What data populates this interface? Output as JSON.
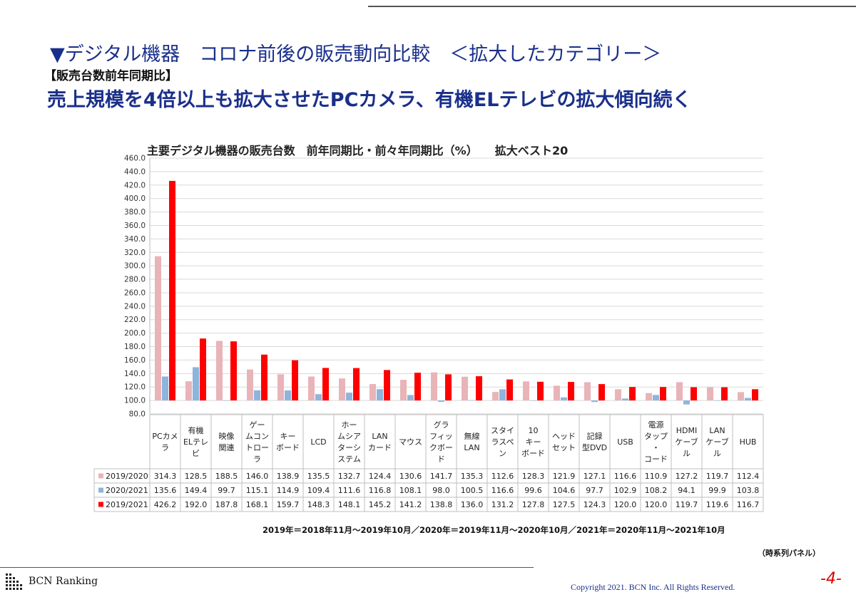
{
  "slide": {
    "title": "▼デジタル機器　コロナ前後の販売動向比較　＜拡大したカテゴリー＞",
    "subtitle": "【販売台数前年同期比】",
    "headline": "売上規模を4倍以上も拡大させたPCカメラ、有機ELテレビの拡大傾向続く",
    "period_note": "2019年＝2018年11月～2019年10月／2020年＝2019年11月～2020年10月／2021年＝2020年11月～2021年10月",
    "source_note": "（時系列パネル）",
    "brand": "BCN Ranking",
    "copyright": "Copyright 2021. BCN Inc. All Rights Reserved.",
    "page_number": "-4-"
  },
  "colors": {
    "series_2019_2020": "#e8b4b8",
    "series_2020_2021": "#8fb4dc",
    "series_2019_2021": "#ff0000",
    "title_blue": "#1a2f8a"
  },
  "chart_data": {
    "type": "bar",
    "title": "主要デジタル機器の販売台数　前年同期比・前々年同期比（%）　　拡大ベスト20",
    "categories": [
      [
        "PCカメ",
        "ラ"
      ],
      [
        "有機",
        "ELテレ",
        "ビ"
      ],
      [
        "映像",
        "関連"
      ],
      [
        "ゲー",
        "ムコン",
        "トロー",
        "ラ"
      ],
      [
        "キー",
        "ボード"
      ],
      [
        "LCD"
      ],
      [
        "ホー",
        "ムシア",
        "ターシ",
        "ステム"
      ],
      [
        "LAN",
        "カード"
      ],
      [
        "マウス"
      ],
      [
        "グラ",
        "フィッ",
        "クボー",
        "ド"
      ],
      [
        "無線",
        "LAN"
      ],
      [
        "スタイ",
        "ラスペ",
        "ン"
      ],
      [
        "10",
        "キー",
        "ボード"
      ],
      [
        "ヘッド",
        "セット"
      ],
      [
        "記録",
        "型DVD"
      ],
      [
        "USB"
      ],
      [
        "電源",
        "タップ",
        "・",
        "コード"
      ],
      [
        "HDMI",
        "ケーブ",
        "ル"
      ],
      [
        "LAN",
        "ケーブ",
        "ル"
      ],
      [
        "HUB"
      ]
    ],
    "series": [
      {
        "name": "2019/2020",
        "values": [
          314.3,
          128.5,
          188.5,
          146.0,
          138.9,
          135.5,
          132.7,
          124.4,
          130.6,
          141.7,
          135.3,
          112.6,
          128.3,
          121.9,
          127.1,
          116.6,
          110.9,
          127.2,
          119.7,
          112.4
        ]
      },
      {
        "name": "2020/2021",
        "values": [
          135.6,
          149.4,
          99.7,
          115.1,
          114.9,
          109.4,
          111.6,
          116.8,
          108.1,
          98.0,
          100.5,
          116.6,
          99.6,
          104.6,
          97.7,
          102.9,
          108.2,
          94.1,
          99.9,
          103.8
        ]
      },
      {
        "name": "2019/2021",
        "values": [
          426.2,
          192.0,
          187.8,
          168.1,
          159.7,
          148.3,
          148.1,
          145.2,
          141.2,
          138.8,
          136.0,
          131.2,
          127.8,
          127.5,
          124.3,
          120.0,
          120.0,
          119.7,
          119.6,
          116.7
        ]
      }
    ],
    "yaxis": {
      "min": 80,
      "max": 460,
      "step": 20,
      "tick_labels": [
        "80.0",
        "100.0",
        "120.0",
        "140.0",
        "160.0",
        "180.0",
        "200.0",
        "220.0",
        "240.0",
        "260.0",
        "280.0",
        "300.0",
        "320.0",
        "340.0",
        "360.0",
        "380.0",
        "400.0",
        "420.0",
        "440.0",
        "460.0"
      ]
    },
    "table": {
      "rows": [
        [
          "314.3",
          "128.5",
          "188.5",
          "146.0",
          "138.9",
          "135.5",
          "132.7",
          "124.4",
          "130.6",
          "141.7",
          "135.3",
          "112.6",
          "128.3",
          "121.9",
          "127.1",
          "116.6",
          "110.9",
          "127.2",
          "119.7",
          "112.4"
        ],
        [
          "135.6",
          "149.4",
          "99.7",
          "115.1",
          "114.9",
          "109.4",
          "111.6",
          "116.8",
          "108.1",
          "98.0",
          "100.5",
          "116.6",
          "99.6",
          "104.6",
          "97.7",
          "102.9",
          "108.2",
          "94.1",
          "99.9",
          "103.8"
        ],
        [
          "426.2",
          "192.0",
          "187.8",
          "168.1",
          "159.7",
          "148.3",
          "148.1",
          "145.2",
          "141.2",
          "138.8",
          "136.0",
          "131.2",
          "127.8",
          "127.5",
          "124.3",
          "120.0",
          "120.0",
          "119.7",
          "119.6",
          "116.7"
        ]
      ]
    },
    "grid": true,
    "legend": "table"
  }
}
